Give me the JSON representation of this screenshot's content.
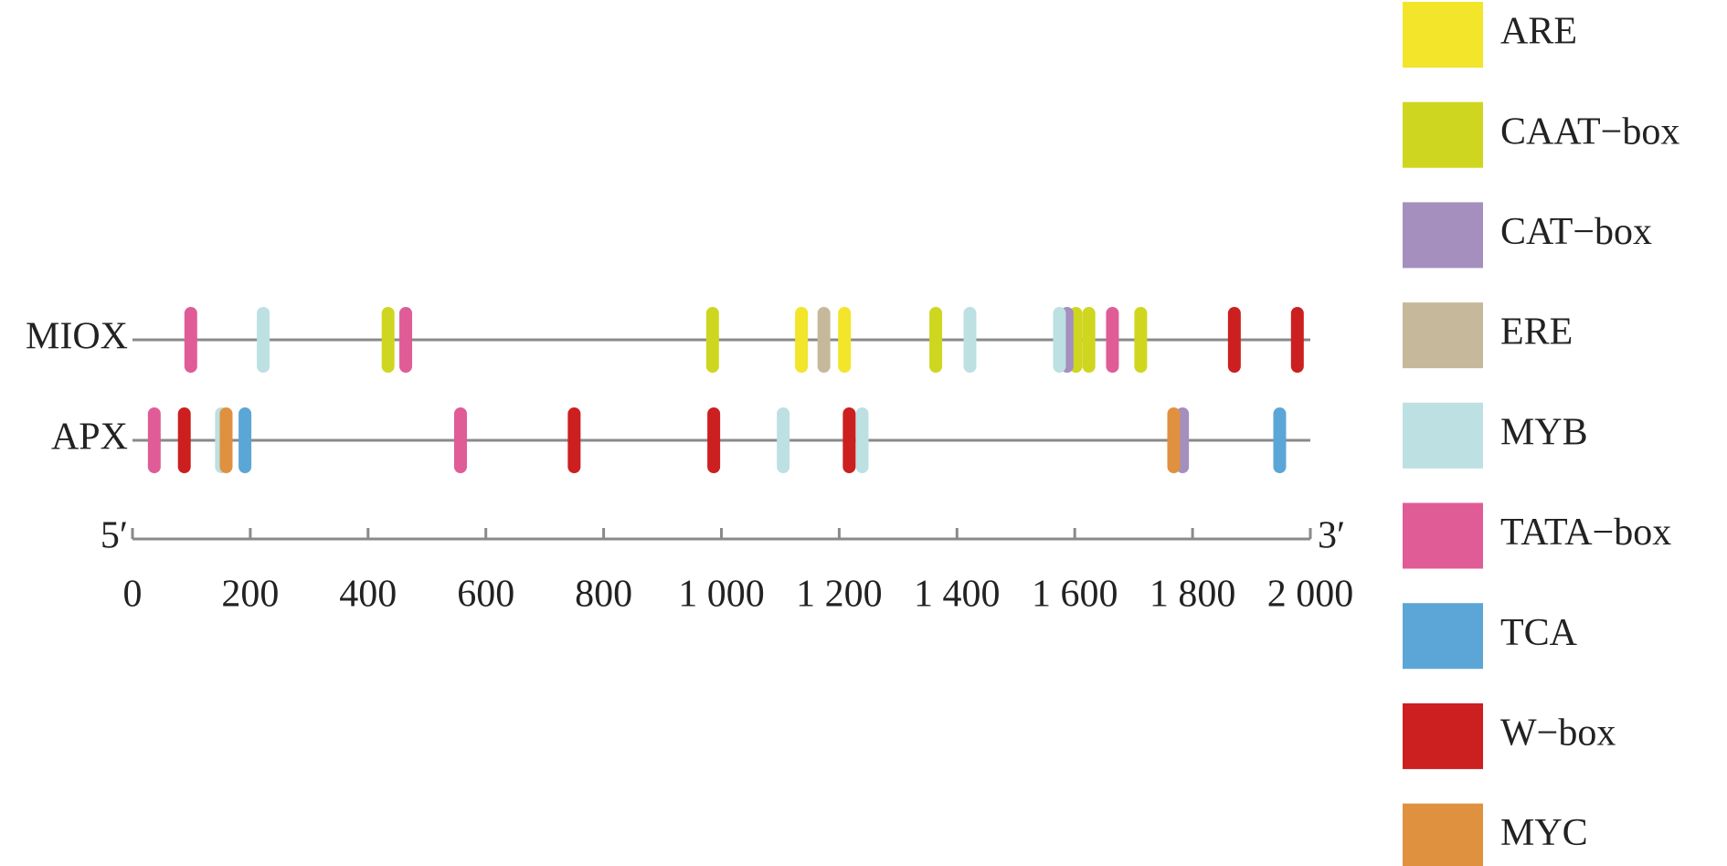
{
  "chart_data": {
    "type": "track",
    "categories": [
      "MIOX",
      "APX"
    ],
    "xlim": [
      0,
      2000
    ],
    "xticks": [
      0,
      200,
      400,
      600,
      800,
      {
        "value": 1000,
        "label": "1 000"
      },
      {
        "value": 1200,
        "label": "1 200"
      },
      {
        "value": 1400,
        "label": "1 400"
      },
      {
        "value": 1600,
        "label": "1 600"
      },
      {
        "value": 1800,
        "label": "1 800"
      },
      {
        "value": 2000,
        "label": "2 000"
      }
    ],
    "annotations": [
      "5′",
      "3′"
    ],
    "series": [
      {
        "name": "ARE",
        "color": "#f2e52a",
        "x": [
          1136,
          1209
        ],
        "y": [
          "MIOX",
          "MIOX"
        ]
      },
      {
        "name": "CAAT−box",
        "color": "#cfd620",
        "x": [
          434,
          985,
          1364,
          1602,
          1624,
          1712
        ],
        "y": [
          "MIOX",
          "MIOX",
          "MIOX",
          "MIOX",
          "MIOX",
          "MIOX"
        ]
      },
      {
        "name": "CAT−box",
        "color": "#a48fbf",
        "x": [
          1587,
          1783
        ],
        "y": [
          "MIOX",
          "APX"
        ]
      },
      {
        "name": "ERE",
        "color": "#c6b89a",
        "x": [
          1174
        ],
        "y": [
          "MIOX"
        ]
      },
      {
        "name": "MYB",
        "color": "#bde0e2",
        "x": [
          222,
          1422,
          1574,
          151,
          1105,
          1239
        ],
        "y": [
          "MIOX",
          "MIOX",
          "MIOX",
          "APX",
          "APX",
          "APX"
        ]
      },
      {
        "name": "TATA−box",
        "color": "#e05c97",
        "x": [
          99,
          464,
          1664,
          37,
          557
        ],
        "y": [
          "MIOX",
          "MIOX",
          "MIOX",
          "APX",
          "APX"
        ]
      },
      {
        "name": "TCA",
        "color": "#5ba6d6",
        "x": [
          191,
          1948
        ],
        "y": [
          "APX",
          "APX"
        ]
      },
      {
        "name": "W−box",
        "color": "#cc1f1f",
        "x": [
          1871,
          1978,
          88,
          750,
          987,
          1217
        ],
        "y": [
          "MIOX",
          "MIOX",
          "APX",
          "APX",
          "APX",
          "APX"
        ]
      },
      {
        "name": "MYC",
        "color": "#e0913f",
        "x": [
          159,
          1768
        ],
        "y": [
          "APX",
          "APX"
        ]
      }
    ]
  }
}
